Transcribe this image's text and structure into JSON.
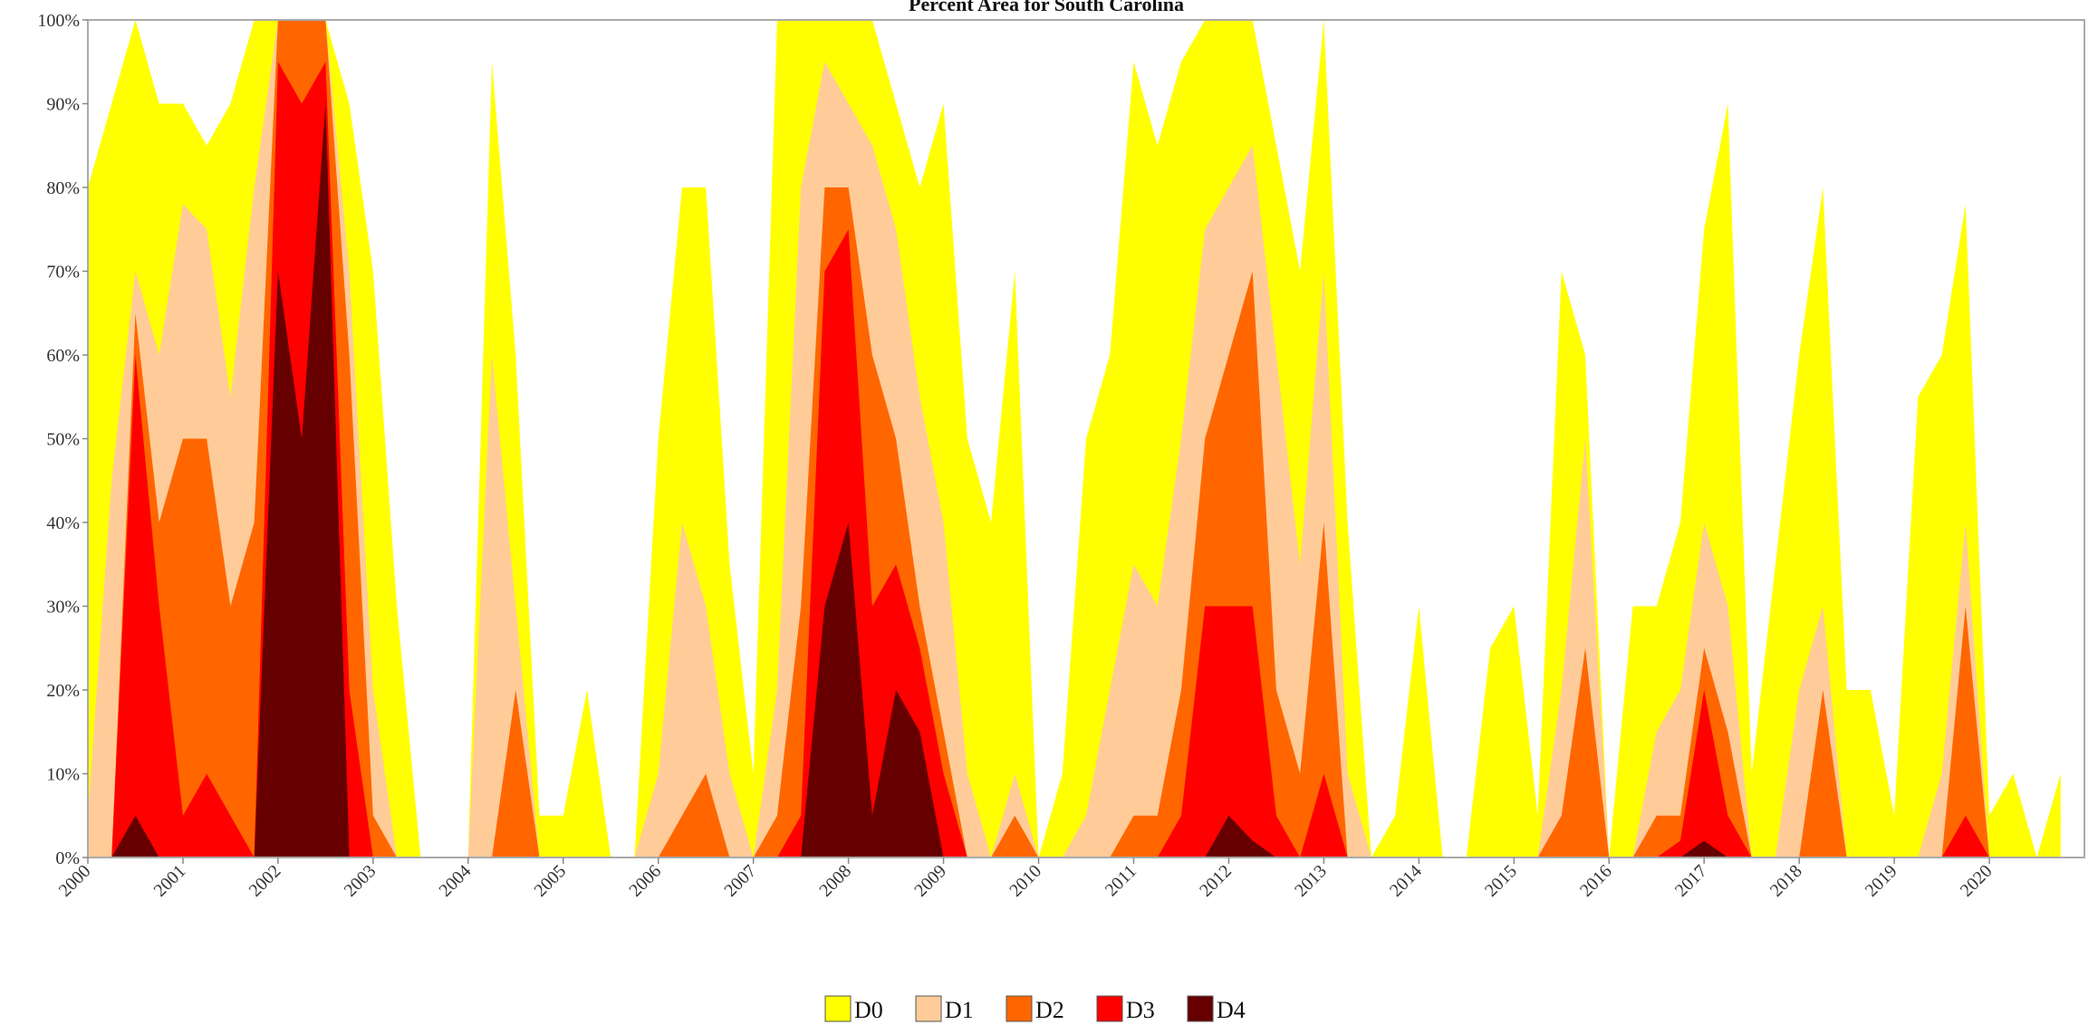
{
  "chart_data": {
    "type": "area",
    "title": "Percent Area for South Carolina",
    "x": [
      2000,
      2000.25,
      2000.5,
      2000.75,
      2001,
      2001.25,
      2001.5,
      2001.75,
      2002,
      2002.25,
      2002.5,
      2002.75,
      2003,
      2003.25,
      2003.5,
      2003.75,
      2004,
      2004.25,
      2004.5,
      2004.75,
      2005,
      2005.25,
      2005.5,
      2005.75,
      2006,
      2006.25,
      2006.5,
      2006.75,
      2007,
      2007.25,
      2007.5,
      2007.75,
      2008,
      2008.25,
      2008.5,
      2008.75,
      2009,
      2009.25,
      2009.5,
      2009.75,
      2010,
      2010.25,
      2010.5,
      2010.75,
      2011,
      2011.25,
      2011.5,
      2011.75,
      2012,
      2012.25,
      2012.5,
      2012.75,
      2013,
      2013.25,
      2013.5,
      2013.75,
      2014,
      2014.25,
      2014.5,
      2014.75,
      2015,
      2015.25,
      2015.5,
      2015.75,
      2016,
      2016.25,
      2016.5,
      2016.75,
      2017,
      2017.25,
      2017.5,
      2017.75,
      2018,
      2018.25,
      2018.5,
      2018.75,
      2019,
      2019.25,
      2019.5,
      2019.75,
      2020,
      2020.25,
      2020.5,
      2020.75
    ],
    "series": [
      {
        "name": "D0",
        "color": "#ffff00",
        "values": [
          80,
          90,
          100,
          90,
          90,
          85,
          90,
          100,
          100,
          100,
          100,
          90,
          70,
          30,
          0,
          0,
          0,
          95,
          60,
          5,
          5,
          20,
          0,
          0,
          50,
          80,
          80,
          35,
          10,
          100,
          100,
          100,
          100,
          100,
          90,
          80,
          90,
          50,
          40,
          70,
          0,
          10,
          50,
          60,
          95,
          85,
          95,
          100,
          100,
          100,
          85,
          70,
          100,
          40,
          0,
          5,
          30,
          0,
          0,
          25,
          30,
          5,
          70,
          60,
          0,
          30,
          30,
          40,
          75,
          90,
          10,
          35,
          60,
          80,
          20,
          20,
          5,
          55,
          60,
          78,
          5,
          10,
          0,
          10
        ]
      },
      {
        "name": "D1",
        "color": "#ffcc99",
        "values": [
          5,
          45,
          70,
          60,
          78,
          75,
          55,
          80,
          100,
          100,
          100,
          70,
          20,
          0,
          0,
          0,
          0,
          60,
          30,
          0,
          0,
          0,
          0,
          0,
          10,
          40,
          30,
          10,
          0,
          20,
          80,
          95,
          90,
          85,
          75,
          55,
          40,
          10,
          0,
          10,
          0,
          0,
          5,
          20,
          35,
          30,
          50,
          75,
          80,
          85,
          60,
          35,
          70,
          10,
          0,
          0,
          0,
          0,
          0,
          0,
          0,
          0,
          20,
          50,
          0,
          0,
          15,
          20,
          40,
          30,
          0,
          0,
          20,
          30,
          0,
          0,
          0,
          0,
          10,
          40,
          0,
          0,
          0,
          0
        ]
      },
      {
        "name": "D2",
        "color": "#ff6600",
        "values": [
          0,
          0,
          65,
          40,
          50,
          50,
          30,
          40,
          100,
          100,
          100,
          60,
          5,
          0,
          0,
          0,
          0,
          0,
          20,
          0,
          0,
          0,
          0,
          0,
          0,
          5,
          10,
          0,
          0,
          5,
          30,
          80,
          80,
          60,
          50,
          30,
          15,
          0,
          0,
          5,
          0,
          0,
          0,
          0,
          5,
          5,
          20,
          50,
          60,
          70,
          20,
          10,
          40,
          0,
          0,
          0,
          0,
          0,
          0,
          0,
          0,
          0,
          5,
          25,
          0,
          0,
          5,
          5,
          25,
          15,
          0,
          0,
          0,
          20,
          0,
          0,
          0,
          0,
          0,
          30,
          0,
          0,
          0,
          0
        ]
      },
      {
        "name": "D3",
        "color": "#ff0000",
        "values": [
          0,
          0,
          60,
          30,
          5,
          10,
          5,
          0,
          95,
          90,
          95,
          20,
          0,
          0,
          0,
          0,
          0,
          0,
          0,
          0,
          0,
          0,
          0,
          0,
          0,
          0,
          0,
          0,
          0,
          0,
          5,
          70,
          75,
          30,
          35,
          25,
          10,
          0,
          0,
          0,
          0,
          0,
          0,
          0,
          0,
          0,
          5,
          30,
          30,
          30,
          5,
          0,
          10,
          0,
          0,
          0,
          0,
          0,
          0,
          0,
          0,
          0,
          0,
          0,
          0,
          0,
          0,
          2,
          20,
          5,
          0,
          0,
          0,
          0,
          0,
          0,
          0,
          0,
          0,
          5,
          0,
          0,
          0,
          0
        ]
      },
      {
        "name": "D4",
        "color": "#660000",
        "values": [
          0,
          0,
          5,
          0,
          0,
          0,
          0,
          0,
          70,
          50,
          90,
          0,
          0,
          0,
          0,
          0,
          0,
          0,
          0,
          0,
          0,
          0,
          0,
          0,
          0,
          0,
          0,
          0,
          0,
          0,
          0,
          30,
          40,
          5,
          20,
          15,
          0,
          0,
          0,
          0,
          0,
          0,
          0,
          0,
          0,
          0,
          0,
          0,
          5,
          2,
          0,
          0,
          0,
          0,
          0,
          0,
          0,
          0,
          0,
          0,
          0,
          0,
          0,
          0,
          0,
          0,
          0,
          0,
          2,
          0,
          0,
          0,
          0,
          0,
          0,
          0,
          0,
          0,
          0,
          0,
          0,
          0,
          0,
          0
        ]
      }
    ],
    "xlim": [
      2000,
      2021
    ],
    "xticks": [
      2000,
      2001,
      2002,
      2003,
      2004,
      2005,
      2006,
      2007,
      2008,
      2009,
      2010,
      2011,
      2012,
      2013,
      2014,
      2015,
      2016,
      2017,
      2018,
      2019,
      2020
    ],
    "ylim": [
      0,
      100
    ],
    "yticks": [
      {
        "value": 0,
        "label": "0%"
      },
      {
        "value": 10,
        "label": "10%"
      },
      {
        "value": 20,
        "label": "20%"
      },
      {
        "value": 30,
        "label": "30%"
      },
      {
        "value": 40,
        "label": "40%"
      },
      {
        "value": 50,
        "label": "50%"
      },
      {
        "value": 60,
        "label": "60%"
      },
      {
        "value": 70,
        "label": "70%"
      },
      {
        "value": 80,
        "label": "80%"
      },
      {
        "value": 90,
        "label": "90%"
      },
      {
        "value": 100,
        "label": "100%"
      }
    ],
    "grid": false,
    "legend": "bottom"
  }
}
